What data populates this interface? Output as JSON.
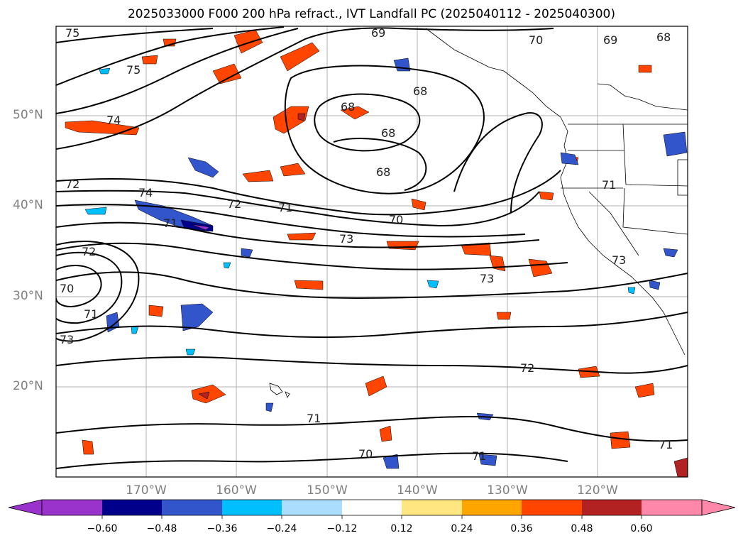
{
  "title": "2025033000 F000 200 hPa refract., IVT Landfall PC (2025040112 - 2025040300)",
  "latitude_labels": [
    "50°N",
    "40°N",
    "30°N",
    "20°N"
  ],
  "longitude_labels": [
    "170°W",
    "160°W",
    "150°W",
    "140°W",
    "130°W",
    "120°W"
  ],
  "colorbar": {
    "ticks": [
      "−0.60",
      "−0.48",
      "−0.36",
      "−0.24",
      "−0.12",
      "0.12",
      "0.24",
      "0.36",
      "0.48",
      "0.60"
    ],
    "colors": [
      "#9933cc",
      "#00008b",
      "#3355cc",
      "#00bfff",
      "#aaddff",
      "#ffffff",
      "#ffe680",
      "#ffa500",
      "#ff4500",
      "#b22222",
      "#ff88aa"
    ]
  },
  "contour_labels": [
    "75",
    "75",
    "74",
    "72",
    "74",
    "72",
    "72",
    "71",
    "70",
    "73",
    "71",
    "73",
    "69",
    "70",
    "69",
    "68",
    "68",
    "68",
    "68",
    "68",
    "71",
    "73",
    "73",
    "70",
    "72",
    "71",
    "70",
    "71",
    "71",
    "71"
  ]
}
